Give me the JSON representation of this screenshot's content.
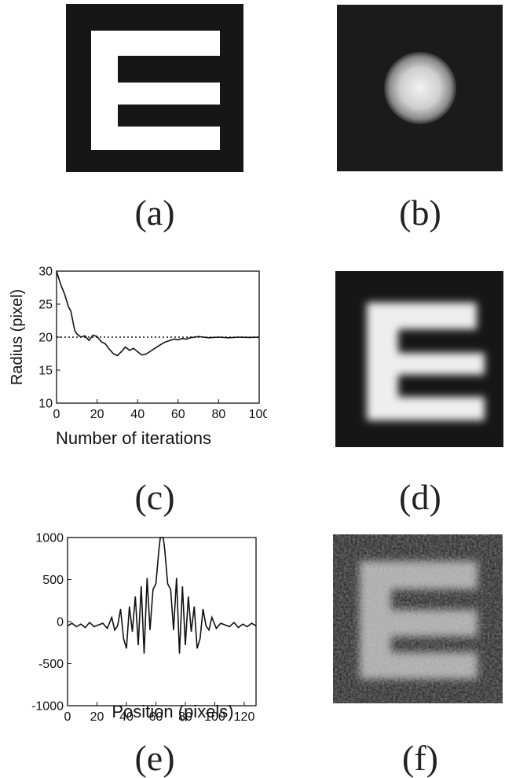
{
  "captions": {
    "a": "(a)",
    "b": "(b)",
    "c": "(c)",
    "d": "(d)",
    "e": "(e)",
    "f": "(f)"
  },
  "chart_data": [
    {
      "type": "line",
      "panel": "c",
      "title": "",
      "xlabel": "Number of iterations",
      "ylabel": "Radius (pixel)",
      "xlim": [
        0,
        100
      ],
      "ylim": [
        10,
        30
      ],
      "xticks": [
        0,
        20,
        40,
        60,
        80,
        100
      ],
      "yticks": [
        10,
        15,
        20,
        25,
        30
      ],
      "grid": false,
      "reference_line": {
        "y": 20,
        "style": "dotted"
      },
      "series": [
        {
          "x": [
            0,
            2,
            4,
            6,
            7,
            8,
            9,
            10,
            12,
            14,
            16,
            18,
            20,
            22,
            24,
            26,
            28,
            30,
            32,
            34,
            36,
            38,
            40,
            42,
            44,
            46,
            48,
            50,
            52,
            54,
            56,
            58,
            60,
            62,
            64,
            66,
            68,
            70,
            75,
            80,
            85,
            90,
            95,
            100
          ],
          "y": [
            30,
            28,
            26.5,
            24.5,
            24,
            22.5,
            21,
            20.5,
            20,
            20.2,
            19.5,
            20.3,
            20.1,
            19.3,
            19,
            18.2,
            17.5,
            17.2,
            17.8,
            18.5,
            18,
            18.3,
            17.8,
            17.3,
            17.4,
            17.8,
            18.2,
            18.6,
            19,
            19.3,
            19.5,
            19.7,
            19.6,
            19.8,
            19.7,
            19.9,
            20,
            20.1,
            19.9,
            20,
            19.9,
            20,
            19.95,
            20
          ]
        }
      ]
    },
    {
      "type": "line",
      "panel": "e",
      "title": "",
      "xlabel": "Position (pixels)",
      "ylabel": "",
      "xlim": [
        0,
        128
      ],
      "ylim": [
        -1000,
        1000
      ],
      "xticks": [
        0,
        20,
        40,
        60,
        80,
        100,
        120
      ],
      "yticks": [
        1000,
        500,
        0,
        -500,
        -1000
      ],
      "grid": false,
      "series": [
        {
          "x": [
            0,
            3,
            6,
            9,
            12,
            15,
            18,
            21,
            24,
            27,
            30,
            32,
            34,
            36,
            38,
            40,
            42,
            44,
            46,
            48,
            50,
            52,
            54,
            56,
            58,
            60,
            62,
            63,
            64,
            65,
            66,
            68,
            70,
            72,
            74,
            76,
            78,
            80,
            82,
            84,
            86,
            88,
            90,
            92,
            94,
            96,
            98,
            101,
            104,
            107,
            110,
            113,
            116,
            119,
            122,
            125,
            128
          ],
          "y": [
            -50,
            -20,
            -60,
            -30,
            -70,
            -10,
            -60,
            -40,
            -20,
            -80,
            50,
            -100,
            -50,
            150,
            -200,
            -320,
            180,
            -120,
            300,
            -280,
            420,
            -380,
            520,
            -100,
            380,
            450,
            850,
            1000,
            1000,
            1000,
            850,
            450,
            380,
            -100,
            520,
            -380,
            420,
            -280,
            300,
            -120,
            180,
            -320,
            -200,
            150,
            -50,
            -100,
            50,
            -80,
            -20,
            -40,
            -60,
            -10,
            -70,
            -30,
            -60,
            -20,
            -50
          ]
        }
      ]
    }
  ]
}
